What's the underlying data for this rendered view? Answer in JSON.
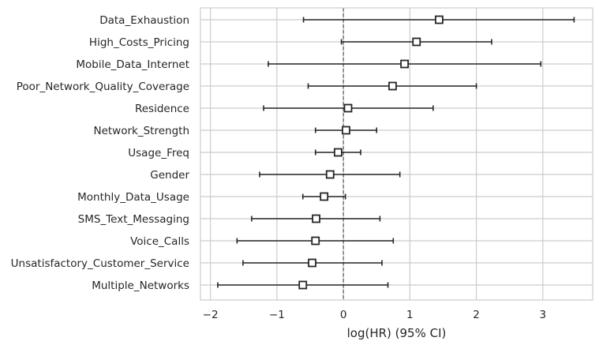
{
  "chart_data": {
    "type": "forest",
    "title": "",
    "xlabel": "log(HR) (95% CI)",
    "ylabel": "",
    "xlim": [
      -2.15,
      3.75
    ],
    "xticks": [
      -2,
      -1,
      0,
      1,
      2,
      3
    ],
    "xtick_labels": [
      "−2",
      "−1",
      "0",
      "1",
      "2",
      "3"
    ],
    "reference_line_x": 0,
    "grid": true,
    "rows": [
      {
        "label": "Data_Exhaustion",
        "coef": 1.44,
        "lower": -0.6,
        "upper": 3.47
      },
      {
        "label": "High_Costs_Pricing",
        "coef": 1.1,
        "lower": -0.03,
        "upper": 2.23
      },
      {
        "label": "Mobile_Data_Internet",
        "coef": 0.92,
        "lower": -1.13,
        "upper": 2.97
      },
      {
        "label": "Poor_Network_Quality_Coverage",
        "coef": 0.74,
        "lower": -0.53,
        "upper": 2.0
      },
      {
        "label": "Residence",
        "coef": 0.07,
        "lower": -1.2,
        "upper": 1.35
      },
      {
        "label": "Network_Strength",
        "coef": 0.04,
        "lower": -0.42,
        "upper": 0.5
      },
      {
        "label": "Usage_Freq",
        "coef": -0.08,
        "lower": -0.42,
        "upper": 0.26
      },
      {
        "label": "Gender",
        "coef": -0.2,
        "lower": -1.26,
        "upper": 0.85
      },
      {
        "label": "Monthly_Data_Usage",
        "coef": -0.29,
        "lower": -0.61,
        "upper": 0.03
      },
      {
        "label": "SMS_Text_Messaging",
        "coef": -0.41,
        "lower": -1.38,
        "upper": 0.55
      },
      {
        "label": "Voice_Calls",
        "coef": -0.42,
        "lower": -1.6,
        "upper": 0.75
      },
      {
        "label": "Unsatisfactory_Customer_Service",
        "coef": -0.47,
        "lower": -1.51,
        "upper": 0.58
      },
      {
        "label": "Multiple_Networks",
        "coef": -0.61,
        "lower": -1.89,
        "upper": 0.67
      }
    ],
    "colors": {
      "background": "#ffffff",
      "grid": "#cccccc",
      "marker_edge": "#262626",
      "marker_face": "#ffffff",
      "errorbar": "#262626",
      "reference_line": "#555555",
      "text": "#262626"
    }
  }
}
